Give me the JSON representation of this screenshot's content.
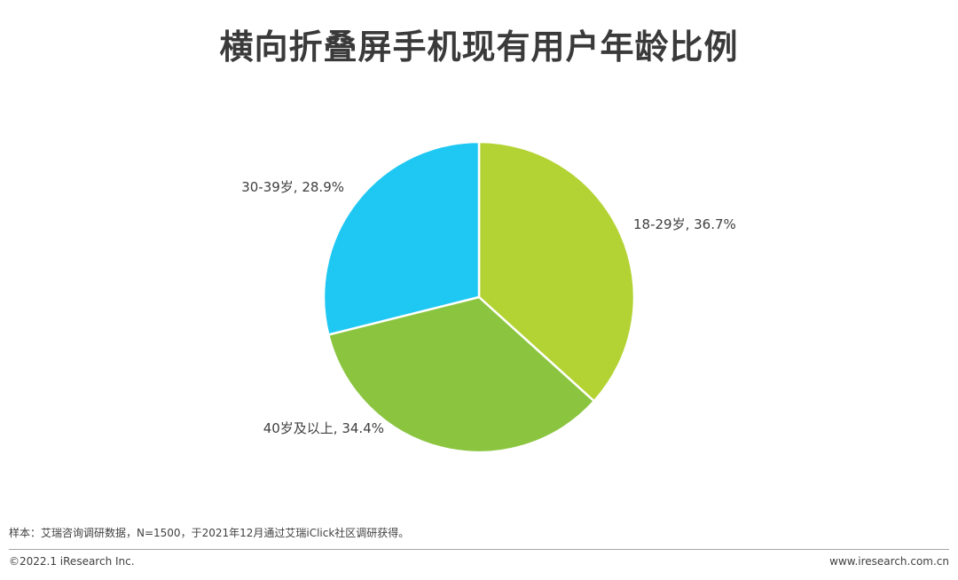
{
  "page": {
    "footnote": "样本：艾瑞咨询调研数据，N=1500，于2021年12月通过艾瑞iClick社区调研获得。",
    "copyright": "©2022.1 iResearch Inc.",
    "website": "www.iresearch.com.cn"
  },
  "chart_data": {
    "type": "pie",
    "title": "横向折叠屏手机现有用户年龄比例",
    "slices": [
      {
        "label": "18-29岁",
        "value": 36.7,
        "display": "18-29岁, 36.7%",
        "color": "#b3d334"
      },
      {
        "label": "40岁及以上",
        "value": 34.4,
        "display": "40岁及以上, 34.4%",
        "color": "#8bc540"
      },
      {
        "label": "30-39岁",
        "value": 28.9,
        "display": "30-39岁, 28.9%",
        "color": "#1fc8f2"
      }
    ],
    "start_angle": "12 o'clock",
    "direction": "clockwise",
    "legend": "none",
    "label_position": "outside"
  }
}
